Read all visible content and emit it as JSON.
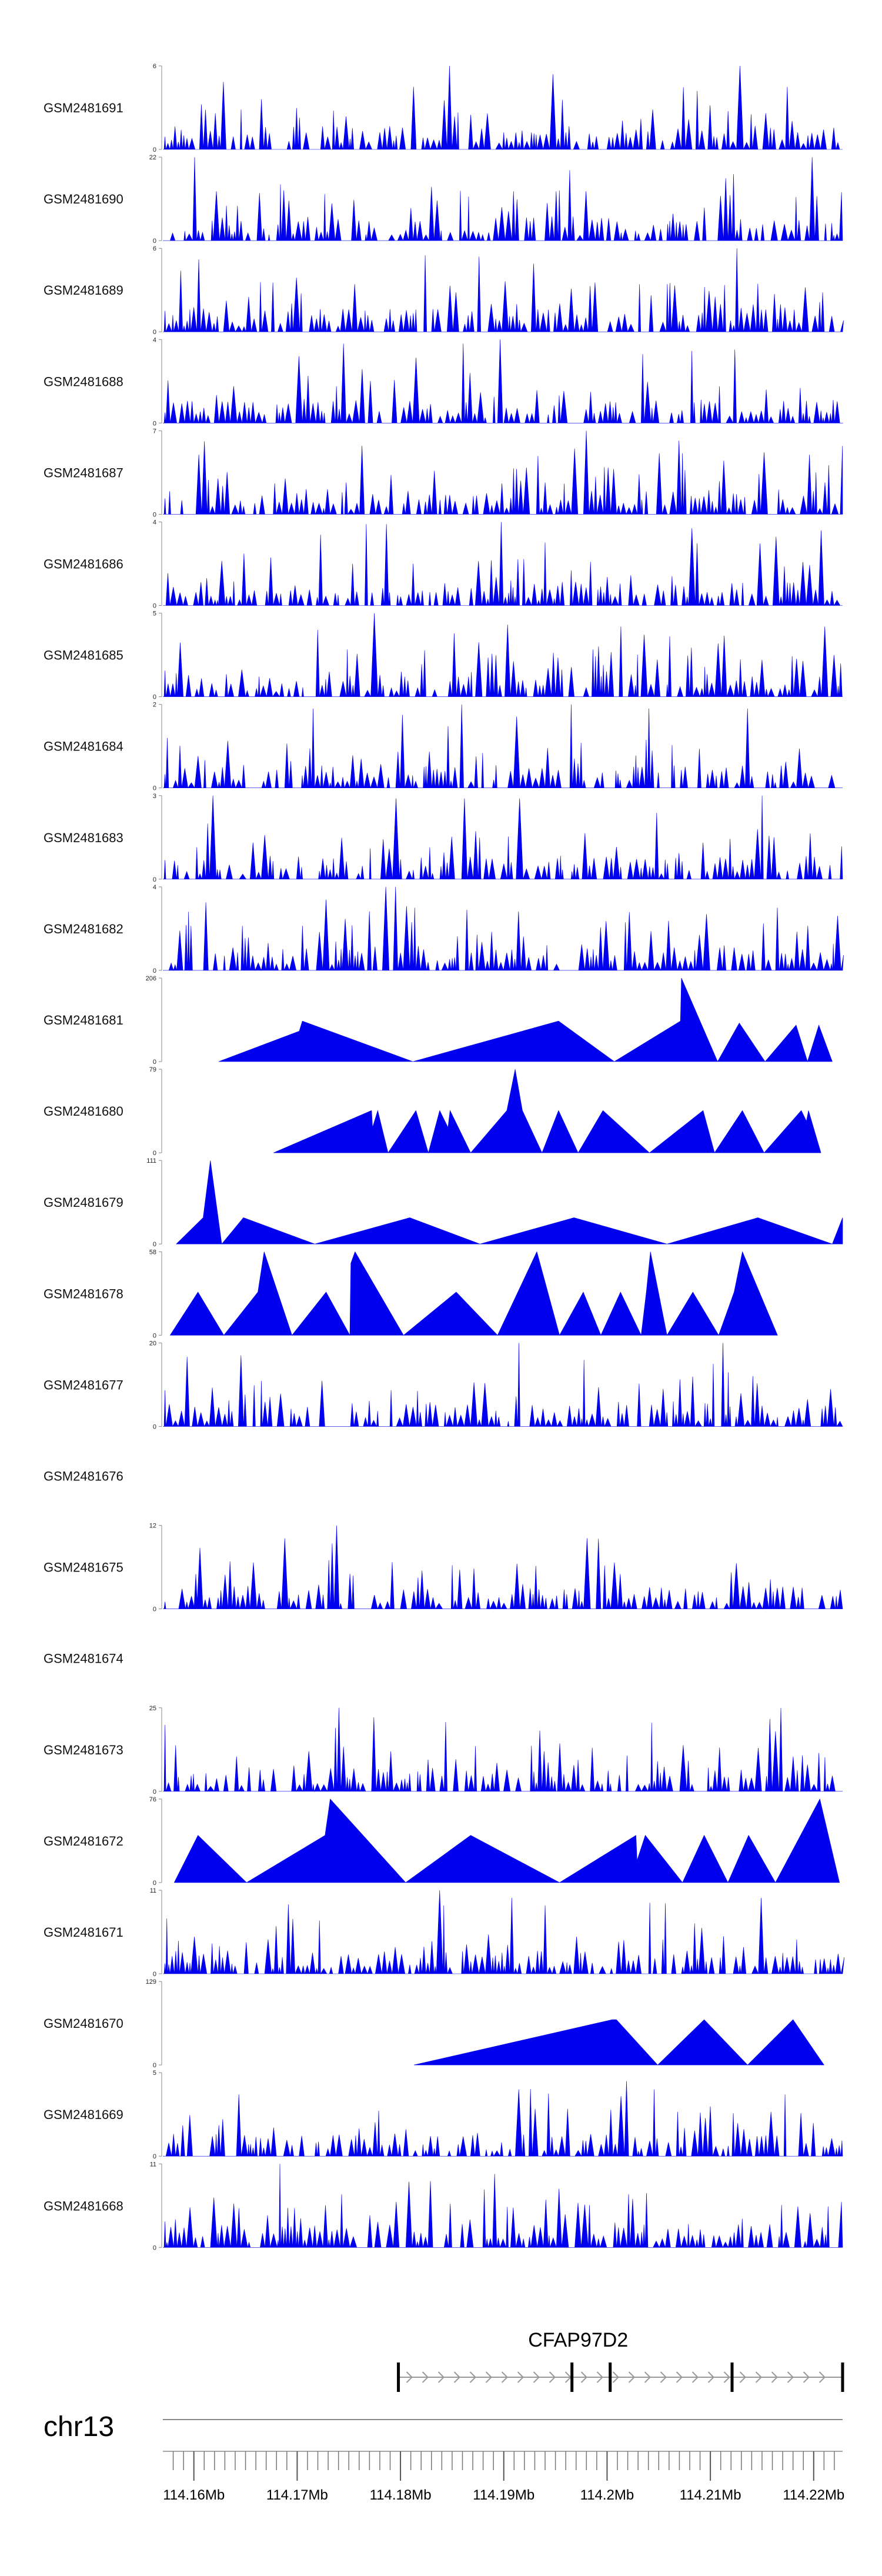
{
  "chart_data": {
    "type": "area",
    "title": "",
    "chromosome": "chr13",
    "x_range": [
      114.157,
      114.2228
    ],
    "axis_unit": "Mb",
    "axis_ticks": [
      114.16,
      114.17,
      114.18,
      114.19,
      114.2,
      114.21,
      114.22
    ],
    "axis_tick_labels": [
      "114.16Mb",
      "114.17Mb",
      "114.18Mb",
      "114.19Mb",
      "114.2Mb",
      "114.21Mb",
      "114.22Mb"
    ],
    "fill_color": "#0000ee",
    "gene": {
      "name": "CFAP97D2",
      "start": 114.1798,
      "end": 114.2228,
      "exons": [
        114.1798,
        114.1966,
        114.2003,
        114.2121,
        114.2228
      ]
    },
    "tracks": [
      {
        "name": "GSM2481691",
        "ymax": 6,
        "style": "dense",
        "peaks": [
          [
            114.1846,
            6
          ],
          [
            114.2132,
            6
          ],
          [
            114.1812,
            4.5
          ],
          [
            114.2088,
            4.2
          ],
          [
            114.2177,
            4.5
          ],
          [
            114.1665,
            3.6
          ]
        ]
      },
      {
        "name": "GSM2481690",
        "ymax": 22,
        "style": "dense",
        "peaks": [
          [
            114.1604,
            22
          ],
          [
            114.2198,
            22
          ],
          [
            114.1912,
            13
          ],
          [
            114.1622,
            13
          ],
          [
            114.1954,
            13
          ]
        ]
      },
      {
        "name": "GSM2481689",
        "ymax": 6,
        "style": "dense",
        "peaks": [
          [
            114.1604,
            5.2
          ],
          [
            114.2127,
            6
          ],
          [
            114.1824,
            5.5
          ],
          [
            114.1877,
            5.4
          ],
          [
            114.1932,
            4.9
          ]
        ]
      },
      {
        "name": "GSM2481688",
        "ymax": 4,
        "style": "dense",
        "peaks": [
          [
            114.1899,
            4
          ],
          [
            114.1746,
            3.8
          ],
          [
            114.1864,
            3.8
          ],
          [
            114.2031,
            3.3
          ],
          [
            114.1701,
            3.2
          ]
        ]
      },
      {
        "name": "GSM2481687",
        "ymax": 7,
        "style": "dense",
        "peaks": [
          [
            114.1982,
            7
          ],
          [
            114.1966,
            5.5
          ],
          [
            114.2195,
            5
          ],
          [
            114.1604,
            5
          ],
          [
            114.2113,
            4.5
          ]
        ]
      },
      {
        "name": "GSM2481686",
        "ymax": 4,
        "style": "dense",
        "peaks": [
          [
            114.1765,
            3.9
          ],
          [
            114.1787,
            3.9
          ],
          [
            114.1899,
            4
          ],
          [
            114.2083,
            3.7
          ],
          [
            114.2211,
            3.6
          ]
        ]
      },
      {
        "name": "GSM2481685",
        "ymax": 5,
        "style": "dense",
        "peaks": [
          [
            114.1778,
            5
          ],
          [
            114.2016,
            4.2
          ],
          [
            114.1721,
            4
          ],
          [
            114.2211,
            4.2
          ],
          [
            114.1852,
            3.8
          ]
        ]
      },
      {
        "name": "GSM2481684",
        "ymax": 2,
        "style": "dense",
        "peaks": [
          [
            114.1862,
            2
          ],
          [
            114.1968,
            2
          ],
          [
            114.1718,
            1.9
          ],
          [
            114.2044,
            1.9
          ],
          [
            114.2139,
            1.9
          ]
        ]
      },
      {
        "name": "GSM2481683",
        "ymax": 3,
        "style": "dense",
        "peaks": [
          [
            114.1617,
            3
          ],
          [
            114.2153,
            3
          ],
          [
            114.1796,
            2.9
          ],
          [
            114.1864,
            2.9
          ],
          [
            114.1917,
            2.9
          ]
        ]
      },
      {
        "name": "GSM2481682",
        "ymax": 4,
        "style": "dense",
        "peaks": [
          [
            114.1788,
            4
          ],
          [
            114.1795,
            4
          ],
          [
            114.1815,
            3
          ],
          [
            114.1864,
            2.9
          ],
          [
            114.2165,
            3
          ]
        ]
      },
      {
        "name": "GSM2481681",
        "ymax": 206,
        "style": "sparse",
        "points": [
          [
            114.1624,
            0
          ],
          [
            114.1702,
            75
          ],
          [
            114.1705,
            100
          ],
          [
            114.1812,
            0
          ],
          [
            114.1953,
            100
          ],
          [
            114.2007,
            0
          ],
          [
            114.2071,
            100
          ],
          [
            114.2072,
            206
          ],
          [
            114.2107,
            0
          ],
          [
            114.2128,
            95
          ],
          [
            114.2153,
            0
          ],
          [
            114.2183,
            90
          ],
          [
            114.2194,
            0
          ],
          [
            114.2205,
            90
          ],
          [
            114.2218,
            0
          ]
        ]
      },
      {
        "name": "GSM2481680",
        "ymax": 79,
        "style": "sparse",
        "points": [
          [
            114.1677,
            0
          ],
          [
            114.1772,
            40
          ],
          [
            114.1773,
            24
          ],
          [
            114.1778,
            40
          ],
          [
            114.1788,
            0
          ],
          [
            114.1815,
            40
          ],
          [
            114.1827,
            0
          ],
          [
            114.1838,
            40
          ],
          [
            114.1846,
            24
          ],
          [
            114.1848,
            40
          ],
          [
            114.1868,
            0
          ],
          [
            114.1903,
            40
          ],
          [
            114.1911,
            79
          ],
          [
            114.1918,
            40
          ],
          [
            114.1937,
            0
          ],
          [
            114.1953,
            40
          ],
          [
            114.1972,
            0
          ],
          [
            114.1996,
            40
          ],
          [
            114.2041,
            0
          ],
          [
            114.2093,
            40
          ],
          [
            114.2104,
            0
          ],
          [
            114.2131,
            40
          ],
          [
            114.2152,
            0
          ],
          [
            114.2188,
            40
          ],
          [
            114.2193,
            30
          ],
          [
            114.2195,
            40
          ],
          [
            114.2207,
            0
          ]
        ]
      },
      {
        "name": "GSM2481679",
        "ymax": 111,
        "style": "sparse",
        "points": [
          [
            114.1583,
            0
          ],
          [
            114.1609,
            35
          ],
          [
            114.1616,
            111
          ],
          [
            114.1627,
            0
          ],
          [
            114.1648,
            35
          ],
          [
            114.1717,
            0
          ],
          [
            114.1809,
            35
          ],
          [
            114.1877,
            0
          ],
          [
            114.1968,
            35
          ],
          [
            114.2058,
            0
          ],
          [
            114.2146,
            35
          ],
          [
            114.2218,
            0
          ],
          [
            114.2228,
            35
          ]
        ]
      },
      {
        "name": "GSM2481678",
        "ymax": 58,
        "style": "sparse",
        "points": [
          [
            114.1577,
            0
          ],
          [
            114.1604,
            30
          ],
          [
            114.1629,
            0
          ],
          [
            114.1662,
            30
          ],
          [
            114.1668,
            58
          ],
          [
            114.1695,
            0
          ],
          [
            114.1728,
            30
          ],
          [
            114.1751,
            0
          ],
          [
            114.1752,
            50
          ],
          [
            114.1756,
            58
          ],
          [
            114.1803,
            0
          ],
          [
            114.1854,
            30
          ],
          [
            114.1894,
            0
          ],
          [
            114.1932,
            58
          ],
          [
            114.1954,
            0
          ],
          [
            114.1977,
            30
          ],
          [
            114.1994,
            0
          ],
          [
            114.2013,
            30
          ],
          [
            114.2033,
            0
          ],
          [
            114.2038,
            30
          ],
          [
            114.2042,
            58
          ],
          [
            114.2058,
            0
          ],
          [
            114.2083,
            30
          ],
          [
            114.2108,
            0
          ],
          [
            114.2123,
            30
          ],
          [
            114.2131,
            58
          ],
          [
            114.2165,
            0
          ]
        ]
      },
      {
        "name": "GSM2481677",
        "ymax": 20,
        "style": "dense",
        "peaks": [
          [
            114.1918,
            20
          ],
          [
            114.2115,
            20
          ],
          [
            114.2119,
            13
          ],
          [
            114.2106,
            15
          ],
          [
            114.2053,
            9
          ]
        ]
      },
      {
        "name": "GSM2481676",
        "ymax": null,
        "style": "empty"
      },
      {
        "name": "GSM2481675",
        "ymax": 12,
        "style": "dense",
        "peaks": [
          [
            114.1738,
            12
          ],
          [
            114.1602,
            5
          ],
          [
            114.1733,
            7
          ],
          [
            114.1822,
            5.5
          ],
          [
            114.2015,
            5
          ]
        ]
      },
      {
        "name": "GSM2481674",
        "ymax": null,
        "style": "empty"
      },
      {
        "name": "GSM2481673",
        "ymax": 25,
        "style": "dense",
        "peaks": [
          [
            114.1742,
            25
          ],
          [
            114.2168,
            25
          ],
          [
            114.1738,
            19
          ],
          [
            114.2166,
            18
          ],
          [
            114.2195,
            8
          ]
        ]
      },
      {
        "name": "GSM2481672",
        "ymax": 76,
        "style": "sparse",
        "points": [
          [
            114.1581,
            0
          ],
          [
            114.1604,
            43
          ],
          [
            114.1651,
            0
          ],
          [
            114.1727,
            43
          ],
          [
            114.1732,
            76
          ],
          [
            114.1805,
            0
          ],
          [
            114.1868,
            43
          ],
          [
            114.1954,
            0
          ],
          [
            114.2028,
            43
          ],
          [
            114.2029,
            20
          ],
          [
            114.2037,
            43
          ],
          [
            114.2073,
            0
          ],
          [
            114.2094,
            43
          ],
          [
            114.2117,
            0
          ],
          [
            114.2137,
            43
          ],
          [
            114.2163,
            0
          ],
          [
            114.2206,
            76
          ],
          [
            114.2225,
            0
          ]
        ]
      },
      {
        "name": "GSM2481671",
        "ymax": 11,
        "style": "dense",
        "peaks": [
          [
            114.1838,
            11
          ],
          [
            114.1843,
            9
          ],
          [
            114.1911,
            10
          ],
          [
            114.1942,
            9
          ],
          [
            114.2151,
            10
          ]
        ]
      },
      {
        "name": "GSM2481670",
        "ymax": 129,
        "style": "sparse",
        "points": [
          [
            114.1813,
            0
          ],
          [
            114.2005,
            70
          ],
          [
            114.2009,
            70
          ],
          [
            114.2049,
            0
          ],
          [
            114.2094,
            70
          ],
          [
            114.2136,
            0
          ],
          [
            114.218,
            70
          ],
          [
            114.221,
            0
          ]
        ]
      },
      {
        "name": "GSM2481669",
        "ymax": 5,
        "style": "dense",
        "peaks": [
          [
            114.1913,
            4
          ],
          [
            114.1643,
            3.7
          ],
          [
            114.2046,
            4
          ],
          [
            114.2172,
            3.7
          ],
          [
            114.2014,
            3.6
          ]
        ]
      },
      {
        "name": "GSM2481668",
        "ymax": 11,
        "style": "dense",
        "peaks": [
          [
            114.1686,
            11
          ],
          [
            114.1744,
            7
          ],
          [
            114.1794,
            6
          ],
          [
            114.2023,
            7
          ],
          [
            114.2228,
            6
          ]
        ]
      }
    ]
  }
}
